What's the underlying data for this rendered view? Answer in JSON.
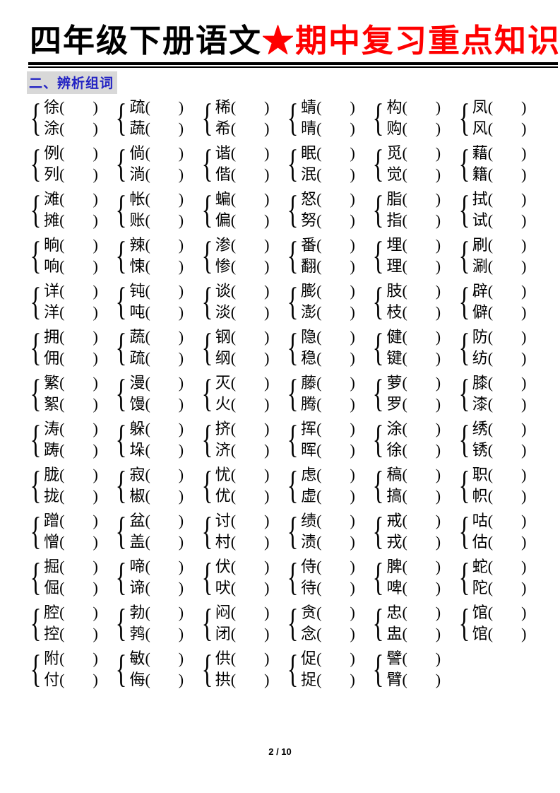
{
  "page": {
    "title": {
      "black_part": "四年级下册语文",
      "star": "★",
      "red_part": "期中复习重点知识点默写"
    },
    "section_heading": "二、辨析组词",
    "footer": {
      "page_indicator": "2 / 10"
    }
  },
  "colors": {
    "title_red": "#ff0000",
    "heading_blue": "#2323c3",
    "heading_highlight": "#d8d8d8",
    "text": "#000000",
    "page_bg": "#ffffff"
  },
  "word_pairs": {
    "brace": "{",
    "paren_open": "(",
    "paren_close": ")",
    "rows": [
      [
        [
          "徐",
          "涂"
        ],
        [
          "疏",
          "蔬"
        ],
        [
          "稀",
          "希"
        ],
        [
          "蜻",
          "晴"
        ],
        [
          "构",
          "购"
        ],
        [
          "凤",
          "风"
        ]
      ],
      [
        [
          "例",
          "列"
        ],
        [
          "倘",
          "淌"
        ],
        [
          "谐",
          "偕"
        ],
        [
          "眠",
          "泯"
        ],
        [
          "觅",
          "觉"
        ],
        [
          "藉",
          "籍"
        ]
      ],
      [
        [
          "滩",
          "摊"
        ],
        [
          "帐",
          "账"
        ],
        [
          "蝙",
          "偏"
        ],
        [
          "怒",
          "努"
        ],
        [
          "脂",
          "指"
        ],
        [
          "拭",
          "试"
        ]
      ],
      [
        [
          "晌",
          "响"
        ],
        [
          "辣",
          "悚"
        ],
        [
          "渗",
          "惨"
        ],
        [
          "番",
          "翻"
        ],
        [
          "埋",
          "理"
        ],
        [
          "刷",
          "涮"
        ]
      ],
      [
        [
          "详",
          "洋"
        ],
        [
          "钝",
          "吨"
        ],
        [
          "谈",
          "淡"
        ],
        [
          "膨",
          "澎"
        ],
        [
          "肢",
          "枝"
        ],
        [
          "辟",
          "僻"
        ]
      ],
      [
        [
          "拥",
          "佣"
        ],
        [
          "蔬",
          "疏"
        ],
        [
          "钢",
          "纲"
        ],
        [
          "隐",
          "稳"
        ],
        [
          "健",
          "键"
        ],
        [
          "防",
          "纺"
        ]
      ],
      [
        [
          "繁",
          "絮"
        ],
        [
          "漫",
          "馒"
        ],
        [
          "灭",
          "火"
        ],
        [
          "藤",
          "腾"
        ],
        [
          "萝",
          "罗"
        ],
        [
          "膝",
          "漆"
        ]
      ],
      [
        [
          "涛",
          "踌"
        ],
        [
          "躲",
          "垛"
        ],
        [
          "挤",
          "济"
        ],
        [
          "挥",
          "晖"
        ],
        [
          "涂",
          "徐"
        ],
        [
          "绣",
          "锈"
        ]
      ],
      [
        [
          "胧",
          "拢"
        ],
        [
          "寂",
          "椒"
        ],
        [
          "忧",
          "优"
        ],
        [
          "虑",
          "虚"
        ],
        [
          "稿",
          "搞"
        ],
        [
          "职",
          "帜"
        ]
      ],
      [
        [
          "蹭",
          "憎"
        ],
        [
          "盆",
          "盖"
        ],
        [
          "讨",
          "村"
        ],
        [
          "绩",
          "渍"
        ],
        [
          "戒",
          "戎"
        ],
        [
          "咕",
          "估"
        ]
      ],
      [
        [
          "掘",
          "倔"
        ],
        [
          "啼",
          "谛"
        ],
        [
          "伏",
          "吠"
        ],
        [
          "侍",
          "待"
        ],
        [
          "脾",
          "啤"
        ],
        [
          "蛇",
          "陀"
        ]
      ],
      [
        [
          "腔",
          "控"
        ],
        [
          "勃",
          "鹁"
        ],
        [
          "闷",
          "闭"
        ],
        [
          "贪",
          "念"
        ],
        [
          "忠",
          "盅"
        ],
        [
          "馆",
          "馆"
        ]
      ],
      [
        [
          "附",
          "付"
        ],
        [
          "敏",
          "侮"
        ],
        [
          "供",
          "拱"
        ],
        [
          "促",
          "捉"
        ],
        [
          "譬",
          "臂"
        ]
      ]
    ]
  }
}
